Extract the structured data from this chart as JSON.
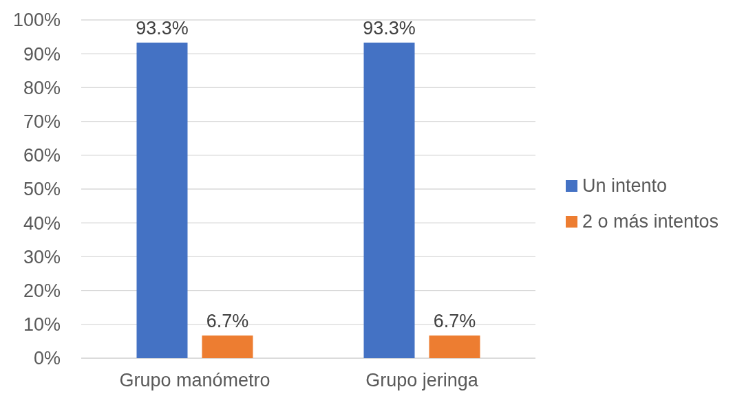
{
  "chart_data": {
    "type": "bar",
    "categories": [
      "Grupo manómetro",
      "Grupo jeringa"
    ],
    "series": [
      {
        "name": "Un intento",
        "color": "#4472c4",
        "values": [
          93.3,
          93.3
        ],
        "value_labels": [
          "93.3%",
          "93.3%"
        ]
      },
      {
        "name": "2 o más intentos",
        "color": "#ed7d31",
        "values": [
          6.7,
          6.7
        ],
        "value_labels": [
          "6.7%",
          "6.7%"
        ]
      }
    ],
    "ylim": [
      0,
      100
    ],
    "yticks": [
      {
        "value": 0,
        "label": "0%"
      },
      {
        "value": 10,
        "label": "10%"
      },
      {
        "value": 20,
        "label": "20%"
      },
      {
        "value": 30,
        "label": "30%"
      },
      {
        "value": 40,
        "label": "40%"
      },
      {
        "value": 50,
        "label": "50%"
      },
      {
        "value": 60,
        "label": "60%"
      },
      {
        "value": 70,
        "label": "70%"
      },
      {
        "value": 80,
        "label": "80%"
      },
      {
        "value": 90,
        "label": "90%"
      },
      {
        "value": 100,
        "label": "100%"
      }
    ],
    "grid": "y",
    "legend": "right"
  }
}
